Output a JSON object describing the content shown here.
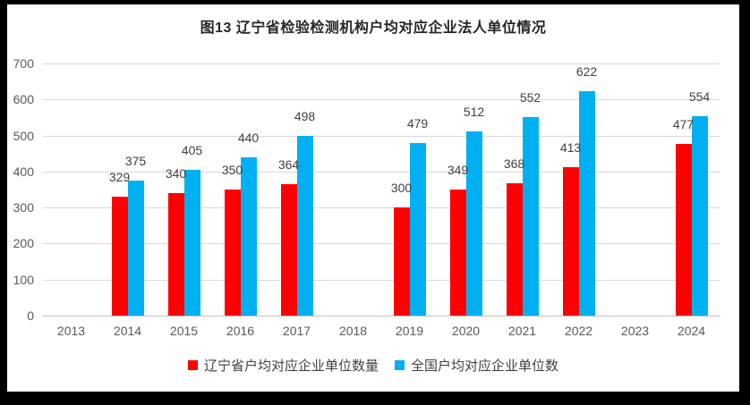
{
  "colors": {
    "frame": "#000000",
    "background": "#FFFFFF",
    "gridline": "#D9D9D9",
    "axis_line": "#BFBFBF",
    "tick_text": "#595959",
    "label_text": "#404040",
    "series_red": "#FF0000",
    "series_blue": "#00B0F0"
  },
  "chart_data": {
    "type": "bar",
    "title": "图13 辽宁省检验检测机构户均对应企业法人单位情况",
    "xlabel": "",
    "ylabel": "",
    "categories": [
      "2013",
      "2014",
      "2015",
      "2016",
      "2017",
      "2018",
      "2019",
      "2020",
      "2021",
      "2022",
      "2023",
      "2024"
    ],
    "series": [
      {
        "key": "liaoning",
        "name": "辽宁省户均对应企业单位数量",
        "color": "#FF0000",
        "values": [
          null,
          329,
          340,
          350,
          364,
          null,
          300,
          349,
          368,
          413,
          null,
          477
        ]
      },
      {
        "key": "national",
        "name": "全国户均对应企业单位数",
        "color": "#00B0F0",
        "values": [
          null,
          375,
          405,
          440,
          498,
          null,
          479,
          512,
          552,
          622,
          null,
          554
        ]
      }
    ],
    "ylim": [
      0,
      700
    ],
    "yticks": [
      0,
      100,
      200,
      300,
      400,
      500,
      600,
      700
    ],
    "grid": true,
    "data_labels": true,
    "legend_position": "bottom"
  }
}
